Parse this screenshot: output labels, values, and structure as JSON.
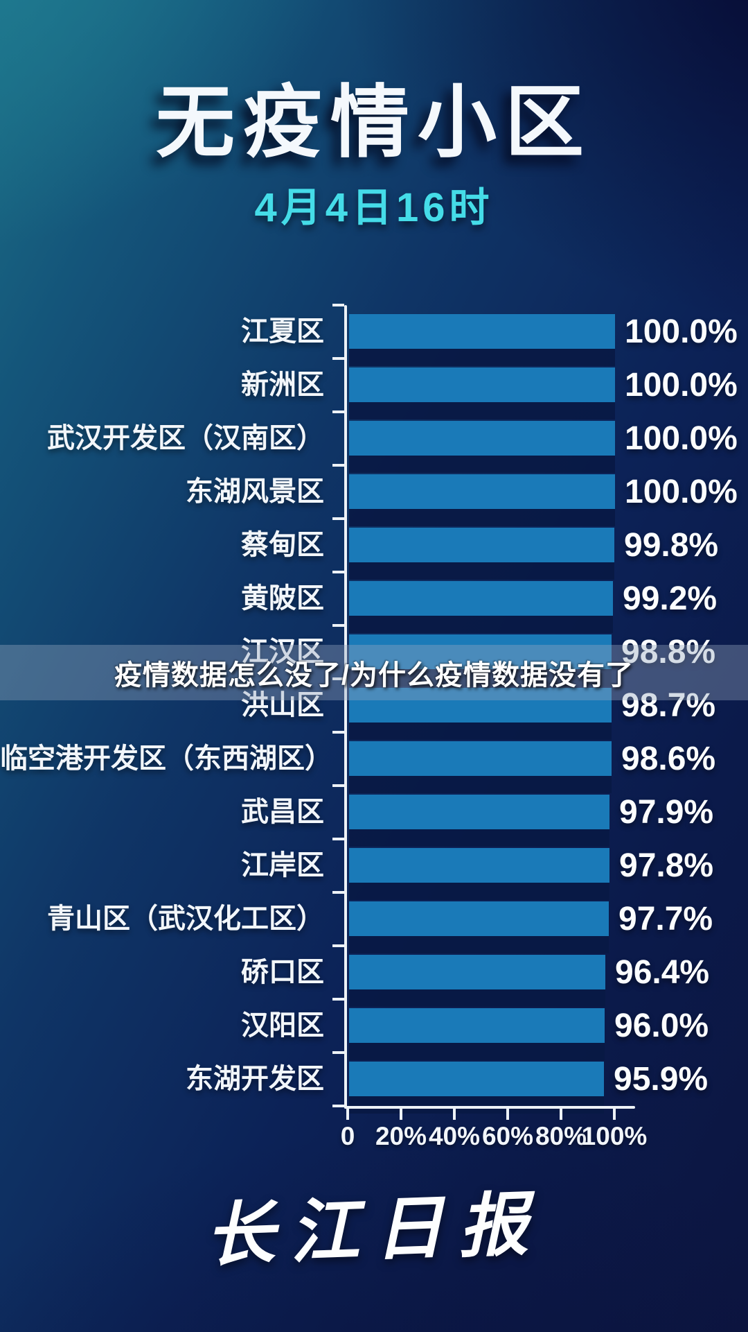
{
  "header": {
    "title": "无疫情小区",
    "subtitle": "4月4日16时"
  },
  "overlay": {
    "text": "疫情数据怎么没了/为什么疫情数据没有了"
  },
  "footer": {
    "logo": "长江日报"
  },
  "colors": {
    "bar": "#1a7ab8",
    "bar_shadow": "#091944",
    "accent_cyan": "#45dce8",
    "axis": "#edf2f7",
    "background_teal": "#1c6f86",
    "background_navy": "#0c1540",
    "overlay_band": "rgba(152,168,192,0.38)"
  },
  "chart_data": {
    "type": "bar",
    "orientation": "horizontal",
    "title": "无疫情小区",
    "subtitle": "4月4日16时",
    "categories": [
      "江夏区",
      "新洲区",
      "武汉开发区（汉南区）",
      "东湖风景区",
      "蔡甸区",
      "黄陂区",
      "江汉区",
      "洪山区",
      "临空港开发区（东西湖区）",
      "武昌区",
      "江岸区",
      "青山区（武汉化工区）",
      "硚口区",
      "汉阳区",
      "东湖开发区"
    ],
    "values": [
      100.0,
      100.0,
      100.0,
      100.0,
      99.8,
      99.2,
      98.8,
      98.7,
      98.6,
      97.9,
      97.8,
      97.7,
      96.4,
      96.0,
      95.9
    ],
    "value_labels": [
      "100.0%",
      "100.0%",
      "100.0%",
      "100.0%",
      "99.8%",
      "99.2%",
      "98.8%",
      "98.7%",
      "98.6%",
      "97.9%",
      "97.8%",
      "97.7%",
      "96.4%",
      "96.0%",
      "95.9%"
    ],
    "x_ticks": [
      "0",
      "20%",
      "40%",
      "60%",
      "80%",
      "100%"
    ],
    "xlim": [
      0,
      100
    ],
    "grid": false,
    "legend": false,
    "bar_color": "#1a7ab8"
  }
}
